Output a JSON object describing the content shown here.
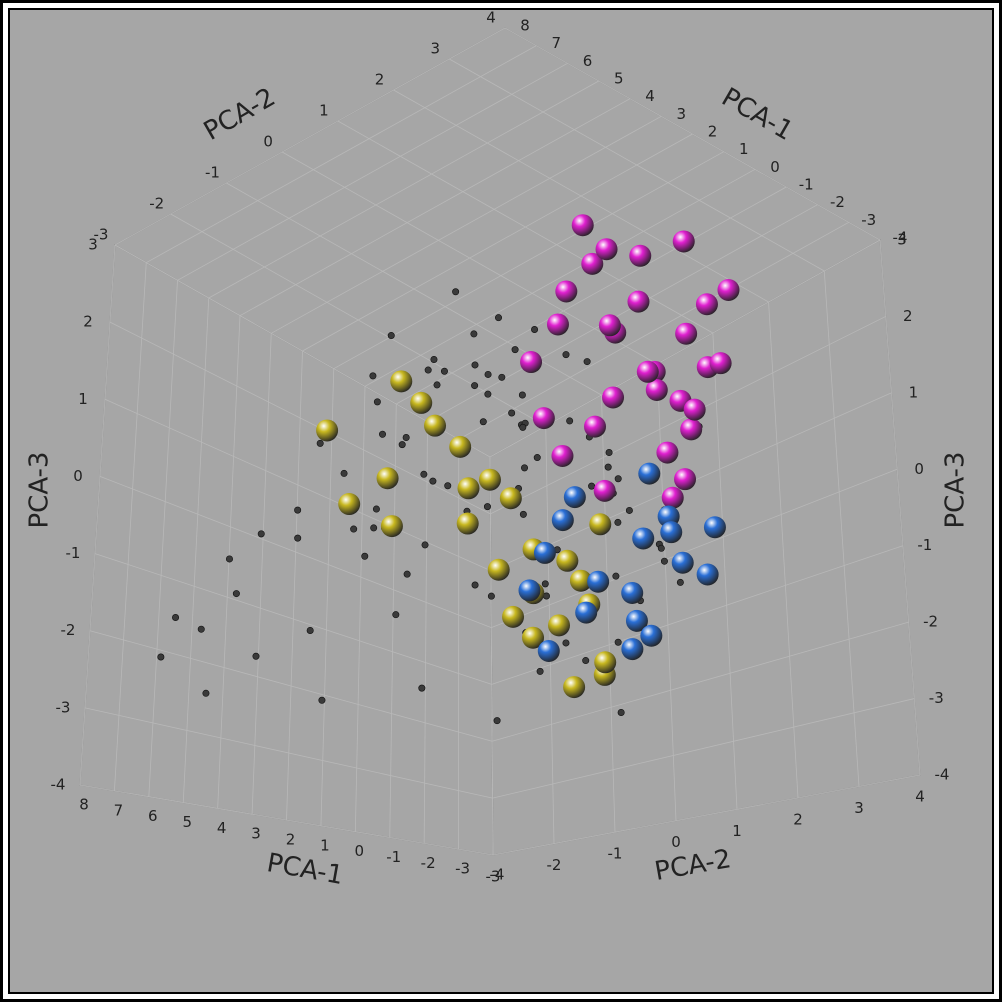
{
  "chart_data": {
    "type": "scatter3d",
    "xlabel": "PCA-1",
    "ylabel": "PCA-2",
    "zlabel": "PCA-3",
    "xlim": [
      -4,
      8
    ],
    "ylim": [
      -3,
      4
    ],
    "zlim": [
      -4,
      3
    ],
    "xticks": [
      -4,
      -3,
      -2,
      -1,
      0,
      1,
      2,
      3,
      4,
      5,
      6,
      7,
      8
    ],
    "yticks": [
      -3,
      -2,
      -1,
      0,
      1,
      2,
      3,
      4
    ],
    "zticks": [
      -4,
      -3,
      -2,
      -1,
      0,
      1,
      2,
      3
    ],
    "grid": true,
    "series": [
      {
        "color": "#3a3a3a",
        "marker": "point",
        "x": [
          1.2,
          2.5,
          3.1,
          0.8,
          4.2,
          2.0,
          1.5,
          3.6,
          5.1,
          2.8,
          0.4,
          1.9,
          2.7,
          3.3,
          6.2,
          1.1,
          2.2,
          4.8,
          0.9,
          3.0,
          2.4,
          1.6,
          3.9,
          7.1,
          0.2,
          2.9,
          1.3,
          4.5,
          2.1,
          3.4,
          5.6,
          0.7,
          2.6,
          1.8,
          3.7,
          6.8,
          1.4,
          2.3,
          4.0,
          0.5,
          3.2,
          2.0,
          1.0,
          5.3,
          2.8,
          0.3,
          3.5,
          1.7,
          4.4,
          2.5,
          6.5,
          1.2,
          3.8,
          0.6,
          2.1,
          4.9,
          1.9,
          3.0,
          7.4,
          2.6,
          0.9,
          3.6,
          1.5,
          2.4,
          5.8,
          0.1,
          2.9,
          4.1,
          1.6,
          3.3,
          2.2,
          6.0,
          0.8,
          3.9,
          1.3,
          2.7,
          4.6,
          1.0,
          3.1,
          5.0,
          2.0,
          0.4,
          3.4,
          1.8,
          6.4,
          2.5,
          4.3,
          1.1,
          2.9,
          0.7,
          3.7,
          1.4,
          5.5,
          2.3,
          0.3,
          4.0,
          2.8,
          7.6,
          1.7,
          3.2
        ],
        "y": [
          0.5,
          1.2,
          -0.3,
          1.8,
          0.0,
          0.9,
          2.1,
          -0.8,
          0.3,
          1.5,
          2.4,
          -0.5,
          0.7,
          1.1,
          -1.2,
          1.9,
          0.2,
          -0.4,
          2.6,
          0.8,
          1.4,
          0.1,
          -1.0,
          -1.5,
          2.2,
          0.6,
          1.7,
          -0.2,
          1.0,
          -0.6,
          -0.9,
          2.0,
          1.3,
          0.4,
          -0.1,
          -1.8,
          1.6,
          0.9,
          0.5,
          2.5,
          -0.7,
          1.1,
          1.5,
          -0.3,
          0.2,
          2.3,
          0.8,
          1.9,
          -1.1,
          0.6,
          -1.4,
          2.1,
          -0.5,
          1.7,
          1.2,
          0.0,
          0.4,
          1.4,
          -1.9,
          0.9,
          2.7,
          -0.2,
          1.0,
          0.3,
          -0.8,
          2.9,
          1.8,
          -0.6,
          0.7,
          0.1,
          1.6,
          -1.3,
          2.2,
          0.5,
          1.3,
          -0.4,
          0.3,
          1.9,
          1.1,
          -0.9,
          0.8,
          2.4,
          0.0,
          1.5,
          -1.6,
          1.2,
          -0.3,
          2.0,
          0.6,
          1.8,
          0.2,
          1.4,
          -0.7,
          0.9,
          2.6,
          0.4,
          1.7,
          -2.0,
          1.0,
          0.3
        ],
        "z": [
          0.2,
          -0.8,
          1.0,
          -1.5,
          -2.0,
          0.5,
          -0.3,
          1.4,
          -1.1,
          -2.4,
          0.8,
          1.7,
          -0.6,
          -1.9,
          -2.5,
          0.0,
          1.2,
          -0.9,
          -1.3,
          0.4,
          -2.8,
          1.5,
          -0.2,
          -3.0,
          0.9,
          -1.6,
          -0.4,
          0.7,
          -2.2,
          1.9,
          -1.0,
          -0.7,
          0.3,
          2.1,
          -1.4,
          -2.1,
          -2.6,
          0.6,
          1.1,
          -0.1,
          -0.5,
          -1.8,
          1.3,
          -0.3,
          2.3,
          -1.2,
          -0.8,
          0.1,
          -2.9,
          0.9,
          -1.7,
          -0.4,
          0.5,
          -2.3,
          1.6,
          -1.0,
          -3.2,
          -0.6,
          -2.0,
          1.0,
          -0.9,
          0.4,
          -1.5,
          1.8,
          -0.7,
          0.2,
          -2.0,
          -1.1,
          0.6,
          -0.2,
          -1.3,
          -0.9,
          -1.9,
          0.8,
          1.4,
          -2.7,
          0.0,
          -0.5,
          -1.6,
          0.3,
          1.5,
          -1.4,
          -0.1,
          -2.4,
          -1.2,
          0.7,
          -0.6,
          -3.3,
          1.2,
          -0.8,
          -1.1,
          0.5,
          -2.2,
          -0.4,
          -1.7,
          1.0,
          -1.5,
          -2.5,
          0.1,
          -0.3
        ]
      },
      {
        "color": "#c8b820",
        "marker": "sphere",
        "x": [
          3.5,
          2.8,
          4.6,
          1.5,
          3.0,
          2.2,
          4.0,
          1.8,
          3.3,
          2.6,
          4.8,
          1.2,
          2.9,
          3.8,
          2.0,
          1.6,
          3.1,
          2.4,
          4.3,
          1.0,
          2.7,
          3.6,
          1.9,
          2.3,
          1.4
        ],
        "y": [
          0.0,
          0.8,
          -0.6,
          1.6,
          0.4,
          1.2,
          -0.2,
          1.9,
          0.7,
          1.4,
          -0.9,
          1.8,
          1.0,
          -0.4,
          1.5,
          2.0,
          0.6,
          1.3,
          0.1,
          1.7,
          1.1,
          0.3,
          1.6,
          0.9,
          1.4
        ],
        "z": [
          0.8,
          -0.3,
          -0.5,
          -1.6,
          0.2,
          -1.2,
          -0.8,
          -2.0,
          -0.9,
          -2.4,
          0.5,
          -2.8,
          -1.5,
          -0.1,
          -2.2,
          -1.0,
          -0.4,
          -1.8,
          0.9,
          -2.6,
          -0.6,
          0.4,
          -1.4,
          -2.0,
          -2.9
        ]
      },
      {
        "color": "#e020d0",
        "marker": "sphere",
        "x": [
          0.5,
          -0.8,
          1.6,
          2.2,
          -0.3,
          1.0,
          0.2,
          -1.2,
          1.8,
          0.7,
          -0.5,
          2.4,
          1.3,
          0.0,
          -1.0,
          0.9,
          1.9,
          -0.2,
          0.4,
          1.5,
          2.0,
          -0.7,
          0.6,
          1.2,
          -1.4,
          0.3,
          1.7,
          -0.1,
          0.8,
          1.1
        ],
        "y": [
          2.2,
          2.6,
          1.8,
          1.4,
          2.9,
          2.0,
          2.4,
          2.8,
          1.6,
          2.5,
          2.3,
          1.3,
          2.1,
          2.7,
          2.0,
          1.7,
          1.5,
          2.6,
          2.9,
          1.9,
          1.6,
          2.4,
          2.2,
          2.8,
          2.5,
          1.5,
          2.0,
          2.3,
          1.8,
          2.6
        ],
        "z": [
          2.5,
          1.2,
          2.8,
          0.4,
          1.8,
          1.5,
          0.0,
          2.2,
          2.0,
          0.9,
          -0.2,
          1.1,
          0.6,
          2.6,
          1.0,
          -0.4,
          1.6,
          0.3,
          1.3,
          2.3,
          -0.1,
          0.7,
          1.9,
          0.5,
          1.4,
          2.9,
          0.2,
          -0.5,
          1.7,
          0.8
        ]
      },
      {
        "color": "#2a6fd6",
        "marker": "sphere",
        "x": [
          0.8,
          -0.5,
          1.5,
          0.2,
          -0.9,
          1.1,
          0.5,
          -0.2,
          1.8,
          0.0,
          -0.7,
          1.3,
          0.6,
          -0.4,
          1.0,
          0.3,
          -1.0,
          1.6
        ],
        "y": [
          1.5,
          2.0,
          1.0,
          1.8,
          2.4,
          1.3,
          1.9,
          2.2,
          0.9,
          1.6,
          2.1,
          1.2,
          2.3,
          1.7,
          1.4,
          2.0,
          2.5,
          1.1
        ],
        "z": [
          -1.5,
          -0.6,
          -1.1,
          -2.0,
          -1.4,
          -0.4,
          -1.7,
          -0.9,
          -1.6,
          -2.3,
          -1.2,
          -0.7,
          -0.3,
          -2.1,
          -1.9,
          -1.0,
          -0.8,
          -2.4
        ]
      }
    ]
  }
}
